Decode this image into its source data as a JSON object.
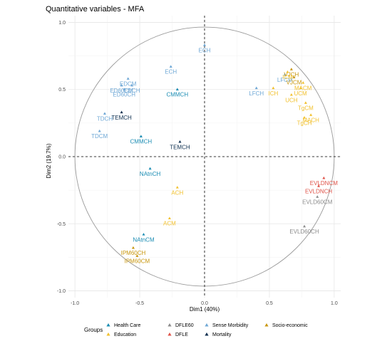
{
  "chart_data": {
    "type": "scatter",
    "title": "Quantitative variables - MFA",
    "xlabel": "Dim1 (40%)",
    "ylabel": "Dim2 (19.7%)",
    "xlim": [
      -1.05,
      1.05
    ],
    "ylim": [
      -1.05,
      1.05
    ],
    "x_ticks": [
      "-1.0",
      "-0.5",
      "0.0",
      "0.5",
      "1.0"
    ],
    "y_ticks": [
      "-1.0",
      "-0.5",
      "0.0",
      "0.5",
      "1.0"
    ],
    "grid": true,
    "unit_circle": true,
    "legend": {
      "title": "Groups",
      "placement": "bottom",
      "entries": [
        {
          "name": "Health Care",
          "color": "#1a8cb3"
        },
        {
          "name": "Education",
          "color": "#f2c12e"
        },
        {
          "name": "DFLE60",
          "color": "#8c8c8c"
        },
        {
          "name": "DFLE",
          "color": "#e0544a"
        },
        {
          "name": "Sense Morbidity",
          "color": "#6fa8d6"
        },
        {
          "name": "Mortality",
          "color": "#0d2f4f"
        },
        {
          "name": "Socio-economic",
          "color": "#c8960c"
        }
      ]
    },
    "points": [
      {
        "label": "ECH",
        "group": "Sense Morbidity",
        "x": 0.0,
        "y": 0.83
      },
      {
        "label": "ECH",
        "group": "Sense Morbidity",
        "x": -0.26,
        "y": 0.67
      },
      {
        "label": "EDCM",
        "group": "Sense Morbidity",
        "x": -0.59,
        "y": 0.58
      },
      {
        "label": "ED60CM",
        "group": "Sense Morbidity",
        "x": -0.64,
        "y": 0.53
      },
      {
        "label": "EDCH",
        "group": "Sense Morbidity",
        "x": -0.56,
        "y": 0.53
      },
      {
        "label": "ED60CH",
        "group": "Sense Morbidity",
        "x": -0.62,
        "y": 0.5
      },
      {
        "label": "TDCH",
        "group": "Sense Morbidity",
        "x": -0.77,
        "y": 0.32
      },
      {
        "label": "TDCM",
        "group": "Sense Morbidity",
        "x": -0.81,
        "y": 0.19
      },
      {
        "label": "LFCM",
        "group": "Sense Morbidity",
        "x": 0.62,
        "y": 0.61
      },
      {
        "label": "LFCH",
        "group": "Sense Morbidity",
        "x": 0.4,
        "y": 0.51
      },
      {
        "label": "CMMCH",
        "group": "Health Care",
        "x": -0.21,
        "y": 0.5
      },
      {
        "label": "CMMCH",
        "group": "Health Care",
        "x": -0.49,
        "y": 0.15
      },
      {
        "label": "NAtnCH",
        "group": "Health Care",
        "x": -0.42,
        "y": -0.09
      },
      {
        "label": "NAtnCM",
        "group": "Health Care",
        "x": -0.47,
        "y": -0.58
      },
      {
        "label": "TEMCH",
        "group": "Mortality",
        "x": -0.64,
        "y": 0.33
      },
      {
        "label": "TEMCH",
        "group": "Mortality",
        "x": -0.19,
        "y": 0.11
      },
      {
        "label": "VJCH",
        "group": "Socio-economic",
        "x": 0.67,
        "y": 0.65
      },
      {
        "label": "VJCM",
        "group": "Socio-economic",
        "x": 0.69,
        "y": 0.59
      },
      {
        "label": "IPM60CH",
        "group": "Socio-economic",
        "x": -0.55,
        "y": -0.68
      },
      {
        "label": "IPM60CM",
        "group": "Socio-economic",
        "x": -0.52,
        "y": -0.74
      },
      {
        "label": "ICM",
        "group": "Education",
        "x": 0.64,
        "y": 0.63
      },
      {
        "label": "MACM",
        "group": "Education",
        "x": 0.76,
        "y": 0.55
      },
      {
        "label": "UCM",
        "group": "Education",
        "x": 0.74,
        "y": 0.51
      },
      {
        "label": "ICH",
        "group": "Education",
        "x": 0.53,
        "y": 0.51
      },
      {
        "label": "UCH",
        "group": "Education",
        "x": 0.67,
        "y": 0.46
      },
      {
        "label": "TgCM",
        "group": "Education",
        "x": 0.78,
        "y": 0.4
      },
      {
        "label": "MACH",
        "group": "Education",
        "x": 0.82,
        "y": 0.31
      },
      {
        "label": "TgCH",
        "group": "Education",
        "x": 0.77,
        "y": 0.29
      },
      {
        "label": "ACH",
        "group": "Education",
        "x": -0.21,
        "y": -0.23
      },
      {
        "label": "ACM",
        "group": "Education",
        "x": -0.27,
        "y": -0.46
      },
      {
        "label": "EVLDNCM",
        "group": "DFLE",
        "x": 0.92,
        "y": -0.16
      },
      {
        "label": "EVLDNCH",
        "group": "DFLE",
        "x": 0.88,
        "y": -0.22
      },
      {
        "label": "EVLD60CM",
        "group": "DFLE60",
        "x": 0.87,
        "y": -0.3
      },
      {
        "label": "EVLD60CH",
        "group": "DFLE60",
        "x": 0.77,
        "y": -0.52
      }
    ]
  }
}
